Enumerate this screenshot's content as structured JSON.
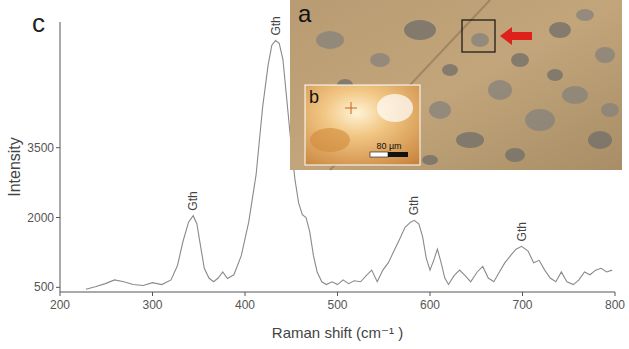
{
  "chart_data": {
    "type": "line",
    "panel_label": "c",
    "xlabel": "Raman shift (cm⁻¹ )",
    "ylabel": "Intensity",
    "color": "#8a8a8a",
    "x": [
      228,
      239,
      249,
      259,
      269,
      279,
      290,
      300,
      310,
      320,
      327,
      333,
      339,
      344,
      348,
      352,
      356,
      361,
      366,
      371,
      376,
      381,
      388,
      396,
      404,
      412,
      419,
      425,
      429,
      433,
      437,
      441,
      445,
      450,
      454,
      458,
      462,
      466,
      470,
      474,
      478,
      483,
      488,
      494,
      500,
      506,
      512,
      518,
      525,
      531,
      537,
      543,
      549,
      555,
      561,
      567,
      573,
      579,
      583,
      588,
      592,
      596,
      600,
      604,
      608,
      612,
      616,
      620,
      626,
      632,
      638,
      644,
      651,
      657,
      663,
      669,
      675,
      681,
      687,
      693,
      699,
      706,
      712,
      718,
      724,
      730,
      736,
      742,
      748,
      755,
      761,
      767,
      773,
      779,
      785,
      791,
      797
    ],
    "values": [
      460,
      520,
      580,
      660,
      620,
      560,
      540,
      600,
      560,
      660,
      970,
      1490,
      1900,
      2040,
      1860,
      1380,
      910,
      700,
      620,
      700,
      830,
      690,
      770,
      1180,
      1900,
      2920,
      4360,
      5280,
      5700,
      5800,
      5740,
      5390,
      4570,
      3540,
      2820,
      2310,
      2060,
      2000,
      1690,
      1180,
      830,
      620,
      560,
      620,
      560,
      660,
      580,
      640,
      620,
      750,
      870,
      620,
      870,
      1030,
      1280,
      1530,
      1790,
      1900,
      1940,
      1860,
      1590,
      1120,
      870,
      1080,
      1320,
      1030,
      700,
      560,
      750,
      870,
      750,
      620,
      830,
      950,
      700,
      620,
      830,
      1030,
      1180,
      1320,
      1380,
      1280,
      1030,
      1080,
      870,
      700,
      620,
      830,
      620,
      560,
      660,
      830,
      770,
      870,
      910,
      830,
      870
    ],
    "xlim": [
      200,
      800
    ],
    "xticks": [
      200,
      300,
      400,
      500,
      600,
      700,
      800
    ],
    "ylim": [
      400,
      6200
    ],
    "yticks": [
      500,
      2000,
      3500
    ],
    "grid": false,
    "annotations": [
      {
        "text": "Gth",
        "x": 344,
        "y": 2040
      },
      {
        "text": "Gth",
        "x": 433,
        "y": 5800
      },
      {
        "text": "Gth",
        "x": 583,
        "y": 1940
      },
      {
        "text": "Gth",
        "x": 699,
        "y": 1380
      }
    ],
    "insets": [
      {
        "label": "a"
      },
      {
        "label": "b",
        "scale_bar": "80 µm"
      }
    ]
  }
}
